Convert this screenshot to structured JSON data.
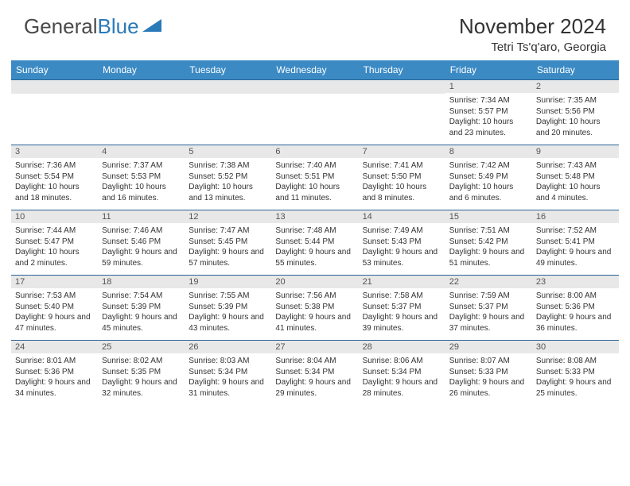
{
  "logo": {
    "part1": "General",
    "part2": "Blue"
  },
  "title": "November 2024",
  "location": "Tetri Ts'q'aro, Georgia",
  "daynames": [
    "Sunday",
    "Monday",
    "Tuesday",
    "Wednesday",
    "Thursday",
    "Friday",
    "Saturday"
  ],
  "colors": {
    "header_bg": "#3b8ac4",
    "border": "#2a6496",
    "daynum_bg": "#e8e8e8",
    "logo_blue": "#2a7ab8"
  },
  "cells": [
    {
      "day": "",
      "sunrise": "",
      "sunset": "",
      "daylight": ""
    },
    {
      "day": "",
      "sunrise": "",
      "sunset": "",
      "daylight": ""
    },
    {
      "day": "",
      "sunrise": "",
      "sunset": "",
      "daylight": ""
    },
    {
      "day": "",
      "sunrise": "",
      "sunset": "",
      "daylight": ""
    },
    {
      "day": "",
      "sunrise": "",
      "sunset": "",
      "daylight": ""
    },
    {
      "day": "1",
      "sunrise": "Sunrise: 7:34 AM",
      "sunset": "Sunset: 5:57 PM",
      "daylight": "Daylight: 10 hours and 23 minutes."
    },
    {
      "day": "2",
      "sunrise": "Sunrise: 7:35 AM",
      "sunset": "Sunset: 5:56 PM",
      "daylight": "Daylight: 10 hours and 20 minutes."
    },
    {
      "day": "3",
      "sunrise": "Sunrise: 7:36 AM",
      "sunset": "Sunset: 5:54 PM",
      "daylight": "Daylight: 10 hours and 18 minutes."
    },
    {
      "day": "4",
      "sunrise": "Sunrise: 7:37 AM",
      "sunset": "Sunset: 5:53 PM",
      "daylight": "Daylight: 10 hours and 16 minutes."
    },
    {
      "day": "5",
      "sunrise": "Sunrise: 7:38 AM",
      "sunset": "Sunset: 5:52 PM",
      "daylight": "Daylight: 10 hours and 13 minutes."
    },
    {
      "day": "6",
      "sunrise": "Sunrise: 7:40 AM",
      "sunset": "Sunset: 5:51 PM",
      "daylight": "Daylight: 10 hours and 11 minutes."
    },
    {
      "day": "7",
      "sunrise": "Sunrise: 7:41 AM",
      "sunset": "Sunset: 5:50 PM",
      "daylight": "Daylight: 10 hours and 8 minutes."
    },
    {
      "day": "8",
      "sunrise": "Sunrise: 7:42 AM",
      "sunset": "Sunset: 5:49 PM",
      "daylight": "Daylight: 10 hours and 6 minutes."
    },
    {
      "day": "9",
      "sunrise": "Sunrise: 7:43 AM",
      "sunset": "Sunset: 5:48 PM",
      "daylight": "Daylight: 10 hours and 4 minutes."
    },
    {
      "day": "10",
      "sunrise": "Sunrise: 7:44 AM",
      "sunset": "Sunset: 5:47 PM",
      "daylight": "Daylight: 10 hours and 2 minutes."
    },
    {
      "day": "11",
      "sunrise": "Sunrise: 7:46 AM",
      "sunset": "Sunset: 5:46 PM",
      "daylight": "Daylight: 9 hours and 59 minutes."
    },
    {
      "day": "12",
      "sunrise": "Sunrise: 7:47 AM",
      "sunset": "Sunset: 5:45 PM",
      "daylight": "Daylight: 9 hours and 57 minutes."
    },
    {
      "day": "13",
      "sunrise": "Sunrise: 7:48 AM",
      "sunset": "Sunset: 5:44 PM",
      "daylight": "Daylight: 9 hours and 55 minutes."
    },
    {
      "day": "14",
      "sunrise": "Sunrise: 7:49 AM",
      "sunset": "Sunset: 5:43 PM",
      "daylight": "Daylight: 9 hours and 53 minutes."
    },
    {
      "day": "15",
      "sunrise": "Sunrise: 7:51 AM",
      "sunset": "Sunset: 5:42 PM",
      "daylight": "Daylight: 9 hours and 51 minutes."
    },
    {
      "day": "16",
      "sunrise": "Sunrise: 7:52 AM",
      "sunset": "Sunset: 5:41 PM",
      "daylight": "Daylight: 9 hours and 49 minutes."
    },
    {
      "day": "17",
      "sunrise": "Sunrise: 7:53 AM",
      "sunset": "Sunset: 5:40 PM",
      "daylight": "Daylight: 9 hours and 47 minutes."
    },
    {
      "day": "18",
      "sunrise": "Sunrise: 7:54 AM",
      "sunset": "Sunset: 5:39 PM",
      "daylight": "Daylight: 9 hours and 45 minutes."
    },
    {
      "day": "19",
      "sunrise": "Sunrise: 7:55 AM",
      "sunset": "Sunset: 5:39 PM",
      "daylight": "Daylight: 9 hours and 43 minutes."
    },
    {
      "day": "20",
      "sunrise": "Sunrise: 7:56 AM",
      "sunset": "Sunset: 5:38 PM",
      "daylight": "Daylight: 9 hours and 41 minutes."
    },
    {
      "day": "21",
      "sunrise": "Sunrise: 7:58 AM",
      "sunset": "Sunset: 5:37 PM",
      "daylight": "Daylight: 9 hours and 39 minutes."
    },
    {
      "day": "22",
      "sunrise": "Sunrise: 7:59 AM",
      "sunset": "Sunset: 5:37 PM",
      "daylight": "Daylight: 9 hours and 37 minutes."
    },
    {
      "day": "23",
      "sunrise": "Sunrise: 8:00 AM",
      "sunset": "Sunset: 5:36 PM",
      "daylight": "Daylight: 9 hours and 36 minutes."
    },
    {
      "day": "24",
      "sunrise": "Sunrise: 8:01 AM",
      "sunset": "Sunset: 5:36 PM",
      "daylight": "Daylight: 9 hours and 34 minutes."
    },
    {
      "day": "25",
      "sunrise": "Sunrise: 8:02 AM",
      "sunset": "Sunset: 5:35 PM",
      "daylight": "Daylight: 9 hours and 32 minutes."
    },
    {
      "day": "26",
      "sunrise": "Sunrise: 8:03 AM",
      "sunset": "Sunset: 5:34 PM",
      "daylight": "Daylight: 9 hours and 31 minutes."
    },
    {
      "day": "27",
      "sunrise": "Sunrise: 8:04 AM",
      "sunset": "Sunset: 5:34 PM",
      "daylight": "Daylight: 9 hours and 29 minutes."
    },
    {
      "day": "28",
      "sunrise": "Sunrise: 8:06 AM",
      "sunset": "Sunset: 5:34 PM",
      "daylight": "Daylight: 9 hours and 28 minutes."
    },
    {
      "day": "29",
      "sunrise": "Sunrise: 8:07 AM",
      "sunset": "Sunset: 5:33 PM",
      "daylight": "Daylight: 9 hours and 26 minutes."
    },
    {
      "day": "30",
      "sunrise": "Sunrise: 8:08 AM",
      "sunset": "Sunset: 5:33 PM",
      "daylight": "Daylight: 9 hours and 25 minutes."
    }
  ]
}
